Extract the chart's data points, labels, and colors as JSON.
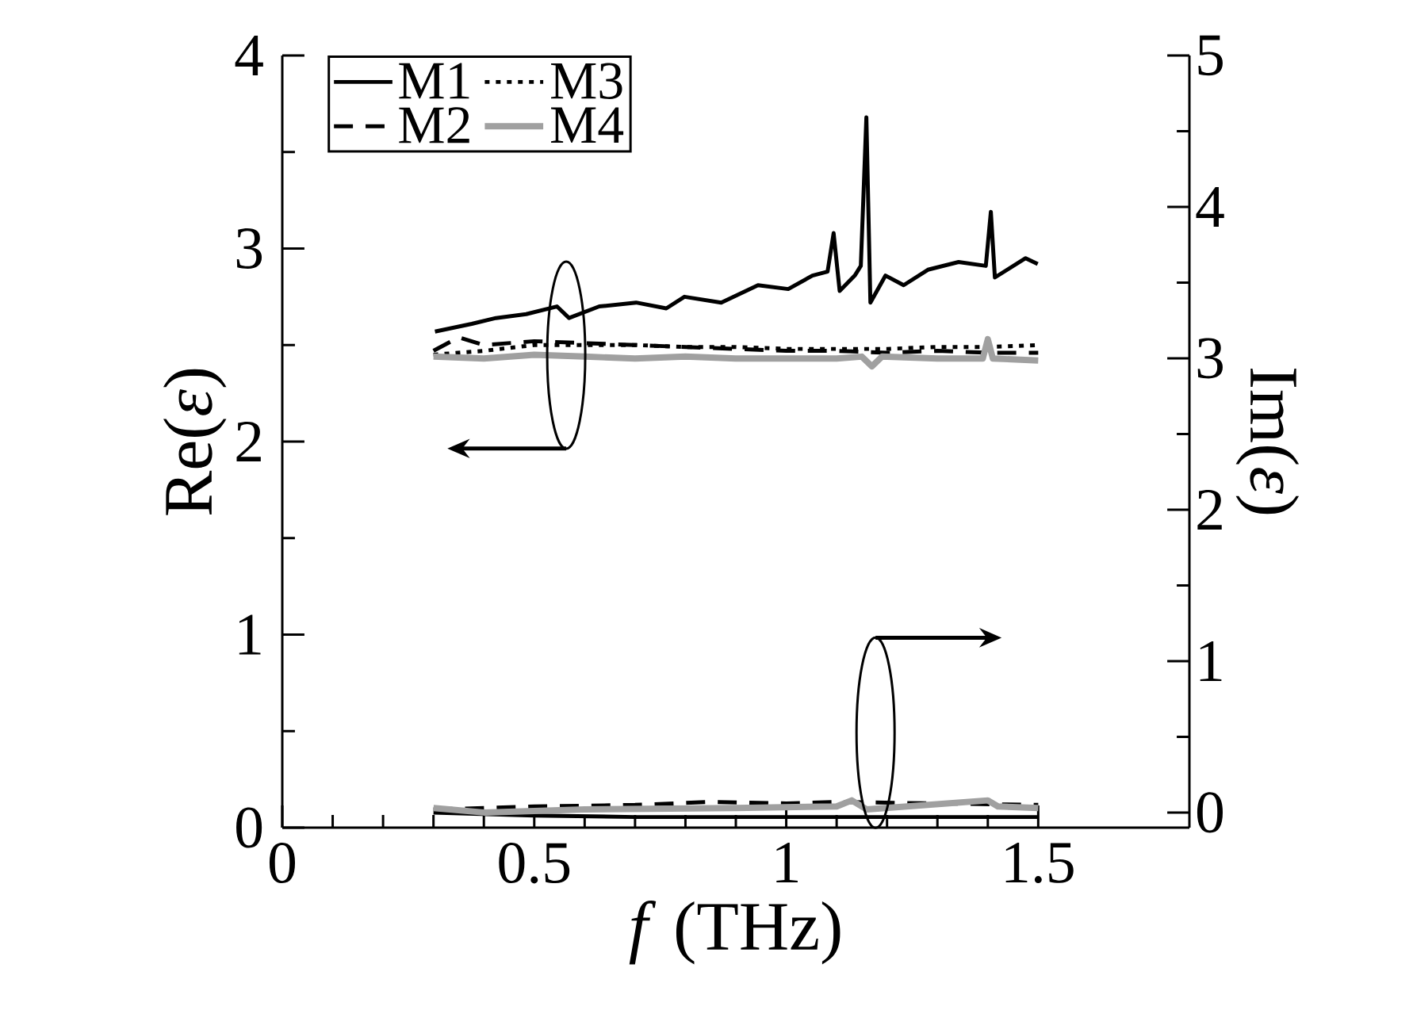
{
  "chart_data": {
    "type": "line",
    "xlabel": "*f* (THz)",
    "ylabel": "Re(*ε*)",
    "y2label": "Im(*ε*)",
    "xlim": [
      0,
      1.8
    ],
    "xticks": [
      0,
      0.5,
      1,
      1.5
    ],
    "ylim": [
      0,
      4
    ],
    "yticks": [
      0,
      1,
      2,
      3,
      4
    ],
    "y2lim": [
      -0.1,
      5
    ],
    "y2ticks": [
      0,
      1,
      2,
      3,
      4,
      5
    ],
    "legend": "top left",
    "grid": false,
    "marker": "none",
    "series": [
      {
        "name": "M1",
        "color": "#000000",
        "line_style": "solid",
        "x": [
          0.303,
          0.376,
          0.424,
          0.484,
          0.545,
          0.569,
          0.629,
          0.702,
          0.762,
          0.798,
          0.871,
          0.944,
          1.004,
          1.052,
          1.082,
          1.094,
          1.106,
          1.136,
          1.148,
          1.159,
          1.167,
          1.197,
          1.233,
          1.281,
          1.342,
          1.396,
          1.406,
          1.414,
          1.475,
          1.499
        ],
        "values": [
          2.57,
          2.61,
          2.64,
          2.66,
          2.7,
          2.64,
          2.7,
          2.72,
          2.69,
          2.75,
          2.72,
          2.81,
          2.79,
          2.86,
          2.88,
          3.08,
          2.78,
          2.86,
          2.91,
          3.68,
          2.72,
          2.86,
          2.81,
          2.89,
          2.93,
          2.91,
          3.19,
          2.85,
          2.95,
          2.92
        ]
      },
      {
        "name": "M2",
        "color": "#000000",
        "line_style": "dashed",
        "x": [
          0.3,
          0.35,
          0.4,
          0.5,
          0.6,
          0.7,
          0.8,
          0.9,
          1.0,
          1.1,
          1.2,
          1.3,
          1.4,
          1.5
        ],
        "values": [
          2.47,
          2.54,
          2.5,
          2.52,
          2.51,
          2.5,
          2.49,
          2.48,
          2.47,
          2.47,
          2.46,
          2.47,
          2.46,
          2.46
        ]
      },
      {
        "name": "M3",
        "color": "#000000",
        "line_style": "dotted",
        "x": [
          0.3,
          0.4,
          0.5,
          0.6,
          0.7,
          0.8,
          0.9,
          1.0,
          1.1,
          1.2,
          1.3,
          1.4,
          1.5
        ],
        "values": [
          2.45,
          2.47,
          2.5,
          2.5,
          2.5,
          2.49,
          2.49,
          2.48,
          2.48,
          2.48,
          2.49,
          2.49,
          2.5
        ]
      },
      {
        "name": "M4",
        "color": "#a0a0a0",
        "line_style": "solid",
        "x": [
          0.3,
          0.4,
          0.5,
          0.6,
          0.7,
          0.8,
          0.9,
          1.0,
          1.1,
          1.15,
          1.17,
          1.19,
          1.3,
          1.39,
          1.4,
          1.41,
          1.5
        ],
        "values": [
          2.44,
          2.43,
          2.45,
          2.44,
          2.43,
          2.44,
          2.43,
          2.43,
          2.43,
          2.44,
          2.39,
          2.44,
          2.43,
          2.43,
          2.53,
          2.43,
          2.42
        ]
      },
      {
        "color": "#000000",
        "line_style": "solid",
        "axis": "y2",
        "x": [
          0.3,
          0.5,
          0.7,
          1.0,
          1.2,
          1.5
        ],
        "values": [
          0.0,
          -0.02,
          -0.03,
          -0.03,
          -0.03,
          -0.03
        ]
      },
      {
        "color": "#000000",
        "line_style": "dashed",
        "axis": "y2",
        "x": [
          0.3,
          0.5,
          0.7,
          0.85,
          1.0,
          1.1,
          1.3,
          1.5
        ],
        "values": [
          0.02,
          0.04,
          0.05,
          0.07,
          0.06,
          0.07,
          0.06,
          0.05
        ]
      },
      {
        "color": "#a0a0a0",
        "line_style": "solid",
        "axis": "y2",
        "x": [
          0.3,
          0.4,
          0.6,
          0.9,
          1.1,
          1.13,
          1.16,
          1.4,
          1.42,
          1.5
        ],
        "values": [
          0.03,
          0.0,
          0.02,
          0.03,
          0.04,
          0.08,
          0.02,
          0.08,
          0.04,
          0.03
        ]
      }
    ]
  }
}
